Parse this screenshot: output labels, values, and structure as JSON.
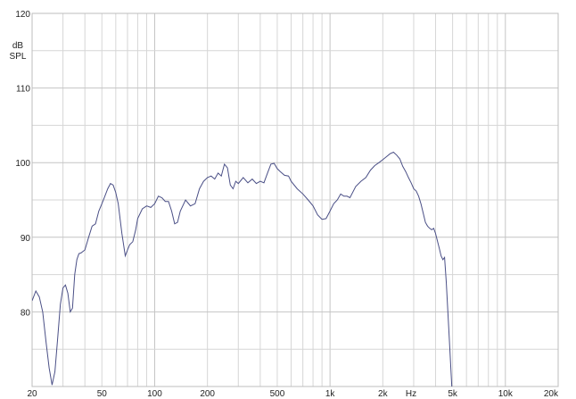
{
  "chart_data": {
    "type": "line",
    "title": "",
    "xlabel": "Hz",
    "ylabel": [
      "dB",
      "SPL"
    ],
    "x_scale": "log",
    "xlim": [
      20,
      20000
    ],
    "ylim": [
      70,
      120
    ],
    "grid": true,
    "x_ticks": [
      {
        "value": 20,
        "label": "20"
      },
      {
        "value": 50,
        "label": "50"
      },
      {
        "value": 100,
        "label": "100"
      },
      {
        "value": 200,
        "label": "200"
      },
      {
        "value": 500,
        "label": "500"
      },
      {
        "value": 1000,
        "label": "1k"
      },
      {
        "value": 2000,
        "label": "2k"
      },
      {
        "value": 5000,
        "label": "5k"
      },
      {
        "value": 10000,
        "label": "10k"
      },
      {
        "value": 20000,
        "label": "20k"
      }
    ],
    "y_ticks": [
      {
        "value": 80,
        "label": "80"
      },
      {
        "value": 90,
        "label": "90"
      },
      {
        "value": 100,
        "label": "100"
      },
      {
        "value": 110,
        "label": "110"
      },
      {
        "value": 120,
        "label": "120"
      }
    ],
    "line_color": "#4a4f86",
    "series": [
      {
        "x": [
          20,
          21,
          22,
          23,
          24,
          25,
          26,
          27,
          28,
          29,
          30,
          31,
          32,
          33,
          34,
          35,
          36,
          37,
          38,
          40,
          42,
          44,
          46,
          48,
          50,
          52,
          54,
          56,
          58,
          60,
          62,
          65,
          68,
          70,
          72,
          75,
          78,
          80,
          85,
          90,
          95,
          100,
          105,
          110,
          115,
          120,
          125,
          130,
          135,
          140,
          150,
          160,
          170,
          180,
          190,
          200,
          210,
          220,
          230,
          240,
          250,
          260,
          270,
          280,
          290,
          300,
          320,
          340,
          360,
          380,
          400,
          420,
          440,
          460,
          480,
          500,
          520,
          550,
          580,
          600,
          650,
          700,
          750,
          800,
          850,
          900,
          950,
          1000,
          1050,
          1100,
          1150,
          1200,
          1250,
          1300,
          1400,
          1500,
          1600,
          1700,
          1800,
          1900,
          2000,
          2100,
          2200,
          2300,
          2400,
          2500,
          2600,
          2700,
          2800,
          2900,
          3000,
          3100,
          3200,
          3300,
          3400,
          3500,
          3600,
          3700,
          3800,
          3900,
          4000,
          4100,
          4200,
          4300,
          4400,
          4500
        ],
        "y": [
          81.5,
          82.8,
          82.0,
          80.0,
          76.0,
          72.5,
          70.2,
          72.0,
          76.5,
          81.0,
          83.2,
          83.6,
          82.5,
          80.0,
          80.5,
          85.0,
          87.0,
          87.8,
          87.9,
          88.3,
          90.0,
          91.5,
          91.8,
          93.5,
          94.5,
          95.5,
          96.5,
          97.2,
          97.0,
          96.0,
          94.5,
          90.5,
          87.5,
          88.3,
          89.0,
          89.4,
          91.0,
          92.5,
          93.8,
          94.2,
          94.0,
          94.5,
          95.5,
          95.3,
          94.8,
          94.8,
          93.5,
          91.8,
          92.0,
          93.5,
          95.0,
          94.2,
          94.5,
          96.5,
          97.5,
          98.0,
          98.2,
          97.8,
          98.6,
          98.2,
          99.8,
          99.3,
          97.0,
          96.5,
          97.5,
          97.2,
          98.0,
          97.3,
          97.8,
          97.2,
          97.5,
          97.3,
          98.6,
          99.8,
          99.9,
          99.2,
          98.8,
          98.3,
          98.2,
          97.5,
          96.5,
          95.8,
          95.0,
          94.2,
          93.0,
          92.4,
          92.5,
          93.5,
          94.5,
          95.0,
          95.8,
          95.5,
          95.5,
          95.3,
          96.8,
          97.5,
          98.0,
          99.0,
          99.6,
          100.0,
          100.4,
          100.8,
          101.2,
          101.4,
          101.0,
          100.5,
          99.5,
          98.8,
          98.0,
          97.3,
          96.5,
          96.2,
          95.5,
          94.5,
          93.2,
          92.0,
          91.5,
          91.2,
          91.0,
          91.2,
          90.5,
          89.5,
          88.5,
          87.5,
          87.0,
          87.3
        ]
      }
    ]
  }
}
